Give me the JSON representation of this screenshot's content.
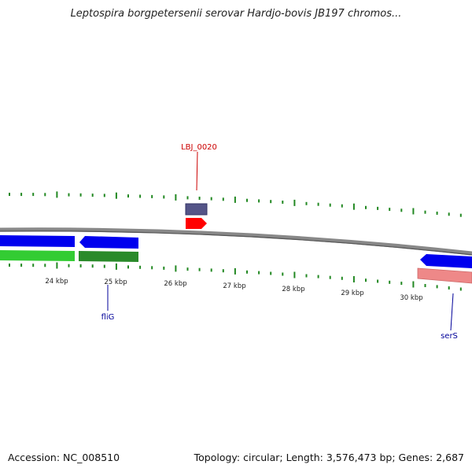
{
  "title": "Leptospira borgpetersenii serovar Hardjo-bovis JB197 chromos...",
  "footer": {
    "accession": "Accession: NC_008510",
    "summary": "Topology: circular; Length: 3,576,473 bp; Genes: 2,687"
  },
  "tick_labels": [
    {
      "label": "24 kbp",
      "kbp": 24
    },
    {
      "label": "25 kbp",
      "kbp": 25
    },
    {
      "label": "26 kbp",
      "kbp": 26
    },
    {
      "label": "27 kbp",
      "kbp": 27
    },
    {
      "label": "28 kbp",
      "kbp": 28
    },
    {
      "label": "29 kbp",
      "kbp": 29
    },
    {
      "label": "30 kbp",
      "kbp": 30
    }
  ],
  "gene_labels": [
    {
      "label": "LBJ_0020",
      "color": "#cc0000"
    },
    {
      "label": "fliG",
      "color": "#000099"
    },
    {
      "label": "serS",
      "color": "#000099"
    }
  ],
  "colors": {
    "backbone": "#888888",
    "cds_forward": "#0000ee",
    "cds_reverse": "#0000ee",
    "gene_green": "#33cc33",
    "gene_dark_green": "#2a8a2a",
    "highlight_red": "#ff0000",
    "slate": "#555588",
    "pink": "#ee8888",
    "tick": "#228822"
  }
}
